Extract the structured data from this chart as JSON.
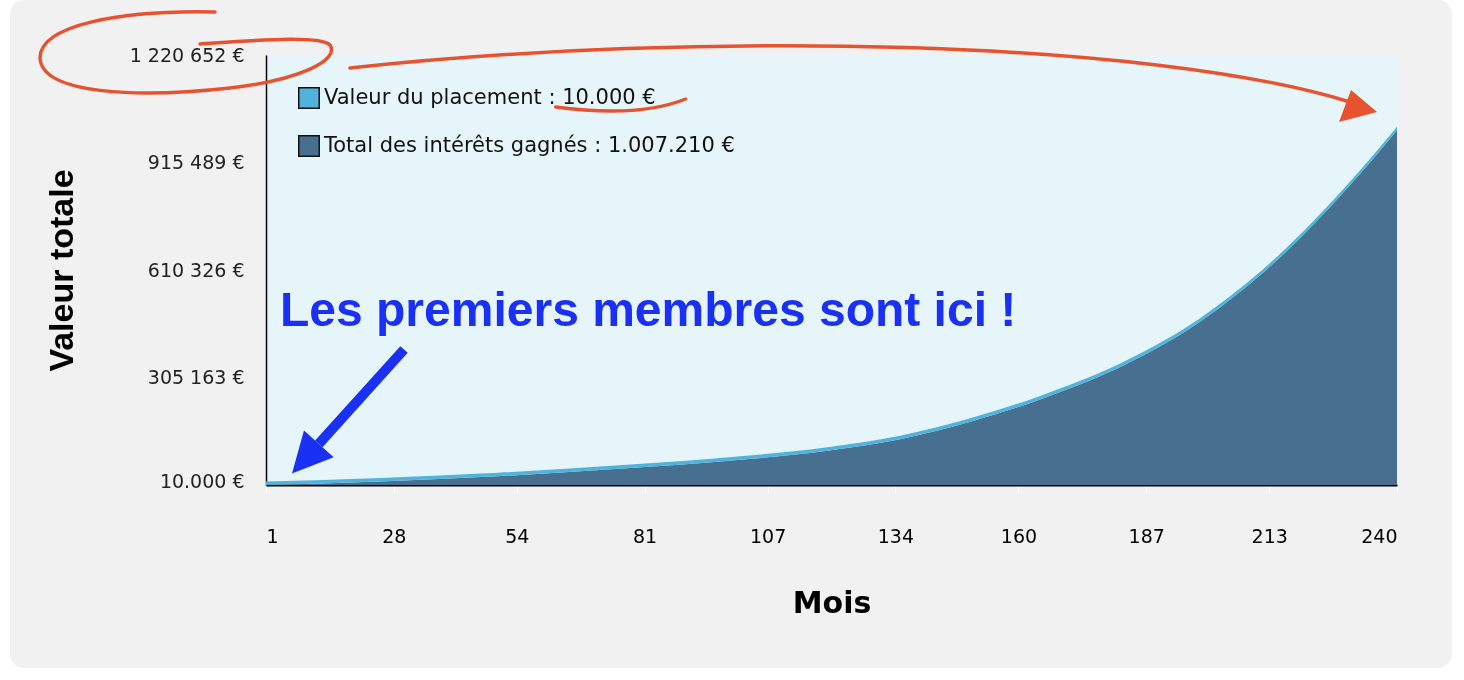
{
  "chart_data": {
    "type": "area",
    "stacked": true,
    "xlabel": "Mois",
    "ylabel": "Valeur totale",
    "x": [
      1,
      25,
      50,
      78,
      100,
      120,
      135,
      150,
      165,
      183,
      198,
      214,
      230,
      240
    ],
    "series": [
      {
        "name": "Total des intérêts gagnés : 1.007.210 €",
        "color": "#476f8f",
        "values": [
          0,
          10000,
          25000,
          48000,
          70000,
          98000,
          130000,
          180000,
          245000,
          345000,
          460000,
          630000,
          850000,
          1007210
        ]
      },
      {
        "name": "Valeur du placement :          10.000 €",
        "color": "#4fb3dc",
        "values": [
          10000,
          10000,
          10000,
          10000,
          10000,
          10000,
          10000,
          10000,
          10000,
          10000,
          10000,
          10000,
          10000,
          10000
        ]
      }
    ],
    "xlim": [
      1,
      240
    ],
    "xticks": [
      1,
      28,
      54,
      81,
      107,
      134,
      160,
      187,
      213,
      240
    ],
    "ylim": [
      0,
      1220652
    ],
    "yticks": [
      {
        "value": 10000,
        "label": "10.000  €"
      },
      {
        "value": 305163,
        "label": "305 163  €"
      },
      {
        "value": 610326,
        "label": "610 326  €"
      },
      {
        "value": 915489,
        "label": "915 489  €"
      },
      {
        "value": 1220652,
        "label": "1 220 652  €"
      }
    ],
    "grid": false,
    "legend": "top left",
    "annotations": [
      "Les premiers membres sont ici !"
    ]
  }
}
